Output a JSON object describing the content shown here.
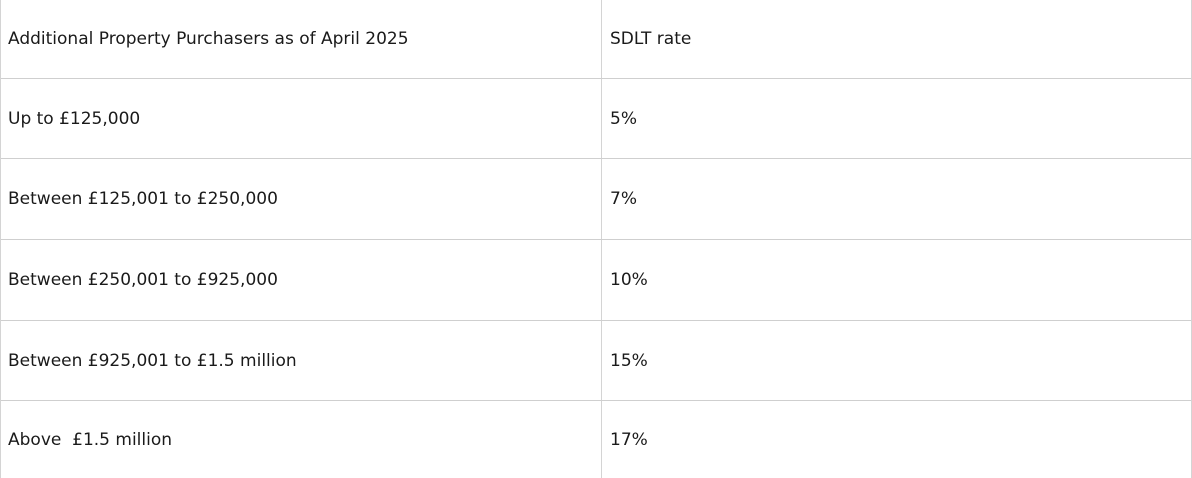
{
  "table": {
    "header": [
      "Additional Property Purchasers as of April 2025",
      "SDLT rate"
    ],
    "rows": [
      [
        "Up to £125,000",
        "5%"
      ],
      [
        "Between £125,001 to £250,000",
        "7%"
      ],
      [
        "Between £250,001 to £925,000",
        "10%"
      ],
      [
        "Between £925,001 to £1.5 million",
        "15%"
      ],
      [
        "Above  £1.5 million",
        "17%"
      ]
    ]
  }
}
